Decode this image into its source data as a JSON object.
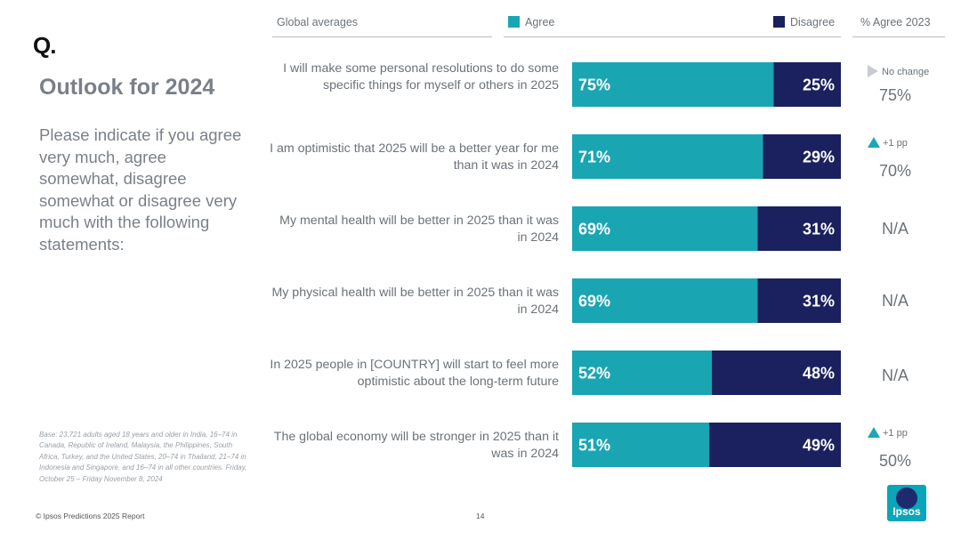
{
  "brand": {
    "mark": "Q.",
    "logo_text": "Ipsos"
  },
  "title": "Outlook for 2024",
  "intro": "Please indicate if you agree very much, agree somewhat, disagree somewhat or disagree very much with the following statements:",
  "base_note": "Base: 23,721 adults aged 18 years and older in India, 16–74 in Canada, Republic of Ireland, Malaysia, the Philippines, South Africa, Turkey, and the United States, 20–74 in Thailand, 21–74 in Indonesia and Singapore, and 16–74 in all other countries. Friday, October 25 – Friday November 8, 2024",
  "footer": {
    "copyright": "© Ipsos Predictions 2025 Report",
    "page": "14"
  },
  "header": {
    "global_label": "Global averages",
    "prev_label": "% Agree 2023"
  },
  "colors": {
    "agree": "#1aa5b3",
    "disagree": "#1b205f",
    "up_arrow": "#1da7b5",
    "no_change": "#c8cbcf"
  },
  "rows": [
    {
      "statement": "I will make some personal resolutions to do some specific things for myself or others in 2025",
      "change": "No change",
      "change_icon": "no-change-icon",
      "prev": "75%"
    },
    {
      "statement": "I am optimistic that 2025 will be a better year for me than it was in 2024",
      "change": "+1 pp",
      "change_icon": "up-arrow-icon",
      "prev": "70%"
    },
    {
      "statement": "My mental health will be better in 2025 than it was in 2024",
      "change": "",
      "change_icon": "",
      "prev": "N/A"
    },
    {
      "statement": "My physical health will be better in 2025 than it was in 2024",
      "change": "",
      "change_icon": "",
      "prev": "N/A"
    },
    {
      "statement": "In 2025 people in [COUNTRY] will start to feel more optimistic about the long-term future",
      "change": "",
      "change_icon": "",
      "prev": "N/A"
    },
    {
      "statement": "The global economy will be stronger in 2025 than it was in 2024",
      "change": "+1 pp",
      "change_icon": "up-arrow-icon",
      "prev": "50%"
    }
  ],
  "chart_data": {
    "type": "bar",
    "orientation": "horizontal",
    "stacked": true,
    "title": "Global averages",
    "xlim": [
      0,
      100
    ],
    "categories": [
      "I will make some personal resolutions to do some specific things for myself or others in 2025",
      "I am optimistic that 2025 will be a better year for me than it was in 2024",
      "My mental health will be better in 2025 than it was in 2024",
      "My physical health will be better in 2025 than it was in 2024",
      "In 2025 people in [COUNTRY] will start to feel more optimistic about the long-term future",
      "The global economy will be stronger in 2025 than it was in 2024"
    ],
    "series": [
      {
        "name": "Agree",
        "values": [
          75,
          71,
          69,
          69,
          52,
          51
        ],
        "labels": [
          "75%",
          "71%",
          "69%",
          "69%",
          "52%",
          "51%"
        ]
      },
      {
        "name": "Disagree",
        "values": [
          25,
          29,
          31,
          31,
          48,
          49
        ],
        "labels": [
          "25%",
          "29%",
          "31%",
          "31%",
          "48%",
          "49%"
        ]
      }
    ],
    "legend": [
      "Agree",
      "Disagree"
    ]
  }
}
